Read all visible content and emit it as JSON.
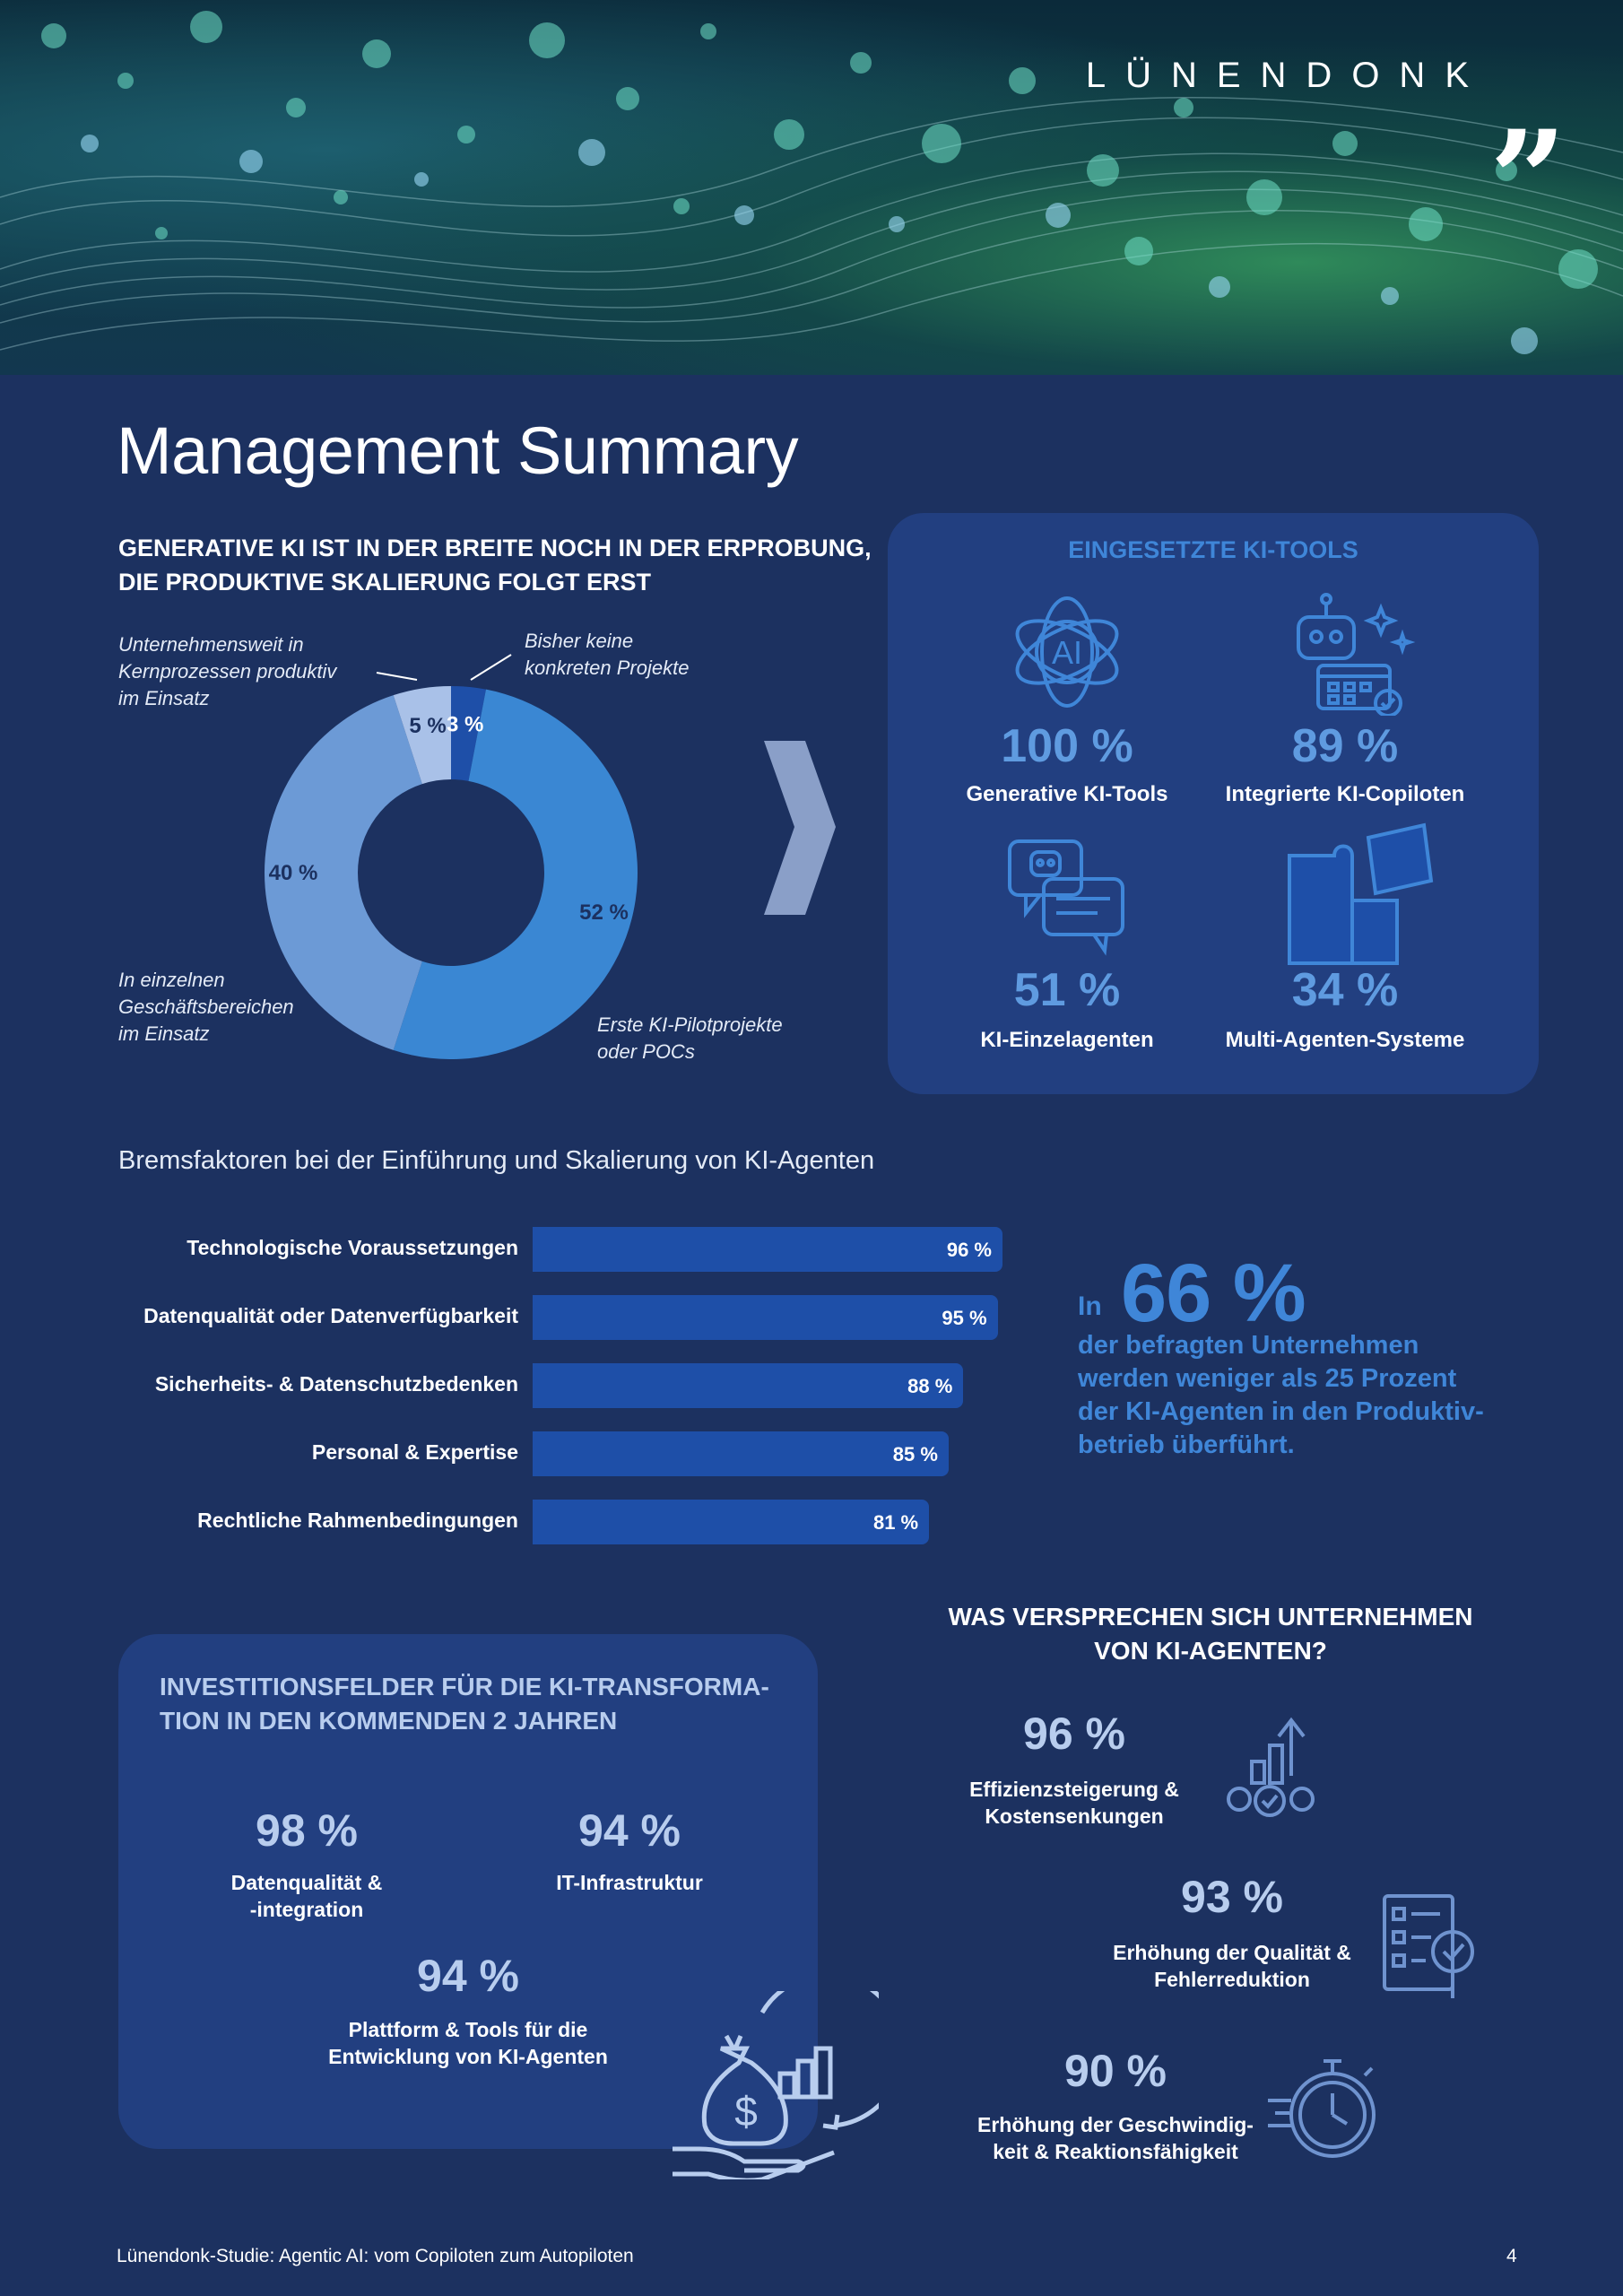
{
  "header": {
    "brand": "LÜNENDONK",
    "brand_mark": "„"
  },
  "page_title": "Management Summary",
  "adoption": {
    "heading_line1": "GENERATIVE KI IST IN DER BREITE NOCH IN DER ERPROBUNG,",
    "heading_line2": "DIE PRODUKTIVE SKALIERUNG FOLGT ERST",
    "labels": {
      "none_line1": "Bisher keine",
      "none_line2": "konkreten Projekte",
      "enterprise_line1": "Unternehmensweit in",
      "enterprise_line2": "Kernprozessen produktiv",
      "enterprise_line3": "im Einsatz",
      "divisions_line1": "In einzelnen",
      "divisions_line2": "Geschäftsbereichen",
      "divisions_line3": "im Einsatz",
      "pilots_line1": "Erste KI-Pilotprojekte",
      "pilots_line2": "oder POCs"
    }
  },
  "chart_data": {
    "type": "pie",
    "segments": [
      {
        "name": "Bisher keine konkreten Projekte",
        "value": 3,
        "label": "3 %",
        "color": "#1e4fa8"
      },
      {
        "name": "Erste KI-Pilotprojekte oder POCs",
        "value": 52,
        "label": "52 %",
        "color": "#3a87d3"
      },
      {
        "name": "In einzelnen Geschäftsbereichen im Einsatz",
        "value": 40,
        "label": "40 %",
        "color": "#6c9ad6"
      },
      {
        "name": "Unternehmensweit in Kernprozessen produktiv im Einsatz",
        "value": 5,
        "label": "5 %",
        "color": "#a9c1e8"
      }
    ]
  },
  "tools": {
    "heading": "EINGESETZTE KI-TOOLS",
    "items": [
      {
        "value": "100 %",
        "label": "Generative KI-Tools",
        "icon": "ai-atom-icon"
      },
      {
        "value": "89 %",
        "label": "Integrierte KI-Copiloten",
        "icon": "robot-calendar-icon"
      },
      {
        "value": "51 %",
        "label": "KI-Einzelagenten",
        "icon": "chat-bot-icon"
      },
      {
        "value": "34 %",
        "label": "Multi-Agenten-Systeme",
        "icon": "puzzle-icon"
      }
    ]
  },
  "brakes": {
    "heading": "Bremsfaktoren bei der Einführung und Skalierung von KI-Agenten",
    "items": [
      {
        "label": "Technologische Voraussetzungen",
        "value": 96,
        "text": "96 %"
      },
      {
        "label": "Datenqualität oder Datenverfügbarkeit",
        "value": 95,
        "text": "95 %"
      },
      {
        "label": "Sicherheits- & Datenschutzbedenken",
        "value": 88,
        "text": "88 %"
      },
      {
        "label": "Personal & Expertise",
        "value": 85,
        "text": "85 %"
      },
      {
        "label": "Rechtliche Rahmenbedingungen",
        "value": 81,
        "text": "81 %"
      }
    ]
  },
  "stat66": {
    "prefix": "In",
    "value": "66 %",
    "line1": "der befragten Unternehmen",
    "line2": "werden weniger als 25 Prozent",
    "line3": "der KI-Agenten in den Produktiv-",
    "line4": "betrieb überführt."
  },
  "invest": {
    "heading_line1": "INVESTITIONSFELDER FÜR DIE KI-TRANSFORMA-",
    "heading_line2": "TION IN DEN KOMMENDEN 2 JAHREN",
    "items": [
      {
        "value": "98 %",
        "label_line1": "Datenqualität &",
        "label_line2": "-integration"
      },
      {
        "value": "94 %",
        "label_line1": "IT-Infrastruktur",
        "label_line2": ""
      },
      {
        "value": "94 %",
        "label_line1": "Plattform & Tools für die",
        "label_line2": "Entwicklung von KI-Agenten"
      }
    ]
  },
  "promise": {
    "heading_line1": "WAS VERSPRECHEN SICH UNTERNEHMEN",
    "heading_line2": "VON KI-AGENTEN?",
    "items": [
      {
        "value": "96 %",
        "label_line1": "Effizienzsteigerung &",
        "label_line2": "Kostensenkungen",
        "icon": "gears-growth-icon"
      },
      {
        "value": "93 %",
        "label_line1": "Erhöhung der Qualität &",
        "label_line2": "Fehlerreduktion",
        "icon": "checklist-magnifier-icon"
      },
      {
        "value": "90 %",
        "label_line1": "Erhöhung der Geschwindig-",
        "label_line2": "keit & Reaktionsfähigkeit",
        "icon": "stopwatch-icon"
      }
    ]
  },
  "footer": {
    "text": "Lünendonk-Studie: Agentic AI: vom Copiloten zum Autopiloten",
    "page": "4"
  }
}
